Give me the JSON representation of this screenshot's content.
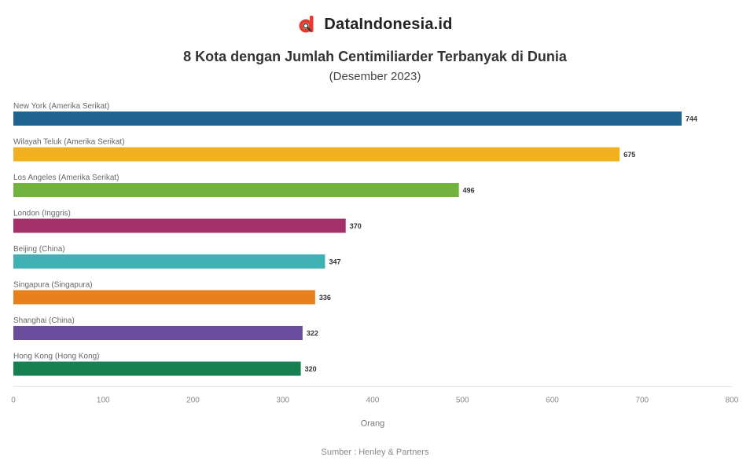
{
  "brand": {
    "name": "DataIndonesia.id",
    "logo_icon": "dataindonesia-logo-icon",
    "logo_color": "#e63b2e"
  },
  "header": {
    "title": "8 Kota dengan Jumlah Centimiliarder Terbanyak di Dunia",
    "subtitle": "(Desember 2023)"
  },
  "footer": {
    "source": "Sumber : Henley & Partners"
  },
  "chart_data": {
    "type": "bar",
    "orientation": "horizontal",
    "categories": [
      "New York (Amerika Serikat)",
      "Wilayah Teluk (Amerika Serikat)",
      "Los Angeles (Amerika Serikat)",
      "London (Inggris)",
      "Beijing (China)",
      "Singapura (Singapura)",
      "Shanghai (China)",
      "Hong Kong (Hong Kong)"
    ],
    "values": [
      744,
      675,
      496,
      370,
      347,
      336,
      322,
      320
    ],
    "colors": [
      "#1f6491",
      "#f2b01e",
      "#72b33f",
      "#a3306b",
      "#3fb0b3",
      "#e8811c",
      "#6a4c9c",
      "#168050"
    ],
    "xlabel": "Orang",
    "ylabel": "",
    "xlim": [
      0,
      800
    ],
    "xticks": [
      0,
      100,
      200,
      300,
      400,
      500,
      600,
      700,
      800
    ],
    "grid": false,
    "legend": "none"
  }
}
